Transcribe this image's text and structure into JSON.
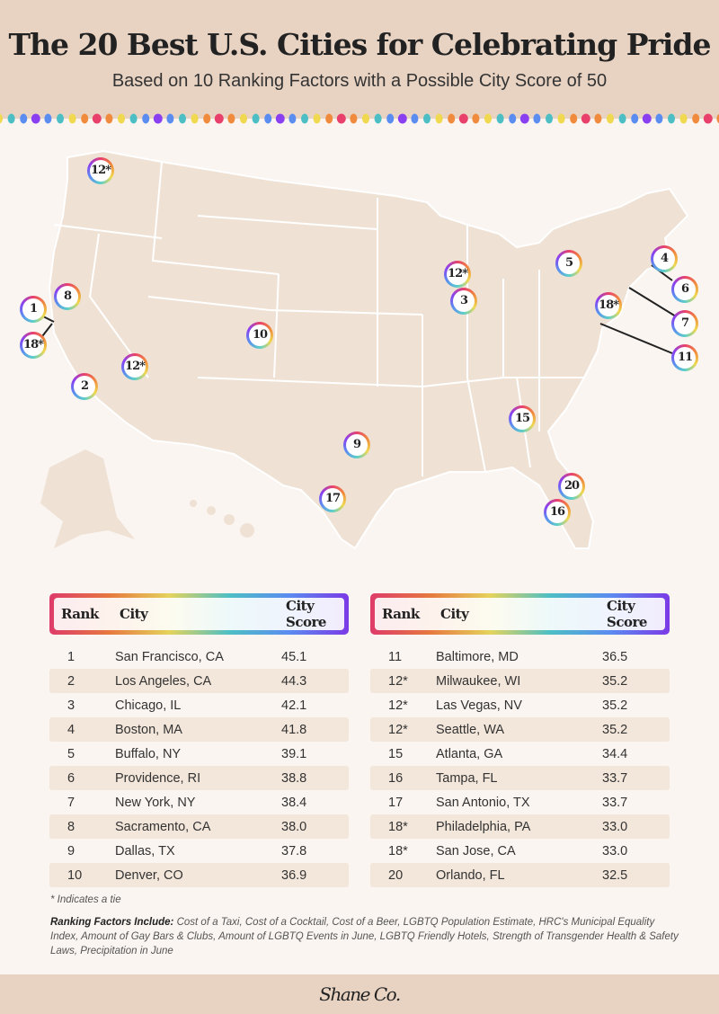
{
  "header": {
    "title": "The 20 Best U.S. Cities for Celebrating Pride",
    "subtitle": "Based on 10 Ranking Factors with a Possible City Score of 50"
  },
  "dot_colors": [
    "#f0d84f",
    "#4dbfc4",
    "#5b8cf0",
    "#8a3ff0",
    "#5b8cf0",
    "#4dbfc4",
    "#f0d84f",
    "#f08a3c",
    "#e8406b",
    "#f08a3c"
  ],
  "map_markers": [
    "12*",
    "8",
    "1",
    "18*",
    "2",
    "12*",
    "10",
    "12*",
    "3",
    "5",
    "4",
    "6",
    "18*",
    "7",
    "11",
    "15",
    "9",
    "17",
    "20",
    "16"
  ],
  "table": {
    "headers": {
      "rank": "Rank",
      "city": "City",
      "score": "City Score"
    },
    "left": [
      [
        "1",
        "San Francisco, CA",
        "45.1"
      ],
      [
        "2",
        "Los Angeles, CA",
        "44.3"
      ],
      [
        "3",
        "Chicago, IL",
        "42.1"
      ],
      [
        "4",
        "Boston, MA",
        "41.8"
      ],
      [
        "5",
        "Buffalo, NY",
        "39.1"
      ],
      [
        "6",
        "Providence, RI",
        "38.8"
      ],
      [
        "7",
        "New York, NY",
        "38.4"
      ],
      [
        "8",
        "Sacramento, CA",
        "38.0"
      ],
      [
        "9",
        "Dallas, TX",
        "37.8"
      ],
      [
        "10",
        "Denver, CO",
        "36.9"
      ]
    ],
    "right": [
      [
        "11",
        "Baltimore, MD",
        "36.5"
      ],
      [
        "12*",
        "Milwaukee, WI",
        "35.2"
      ],
      [
        "12*",
        "Las Vegas, NV",
        "35.2"
      ],
      [
        "12*",
        "Seattle, WA",
        "35.2"
      ],
      [
        "15",
        "Atlanta, GA",
        "34.4"
      ],
      [
        "16",
        "Tampa, FL",
        "33.7"
      ],
      [
        "17",
        "San Antonio, TX",
        "33.7"
      ],
      [
        "18*",
        "Philadelphia, PA",
        "33.0"
      ],
      [
        "18*",
        "San Jose, CA",
        "33.0"
      ],
      [
        "20",
        "Orlando, FL",
        "32.5"
      ]
    ]
  },
  "notes": {
    "tie": "* Indicates a tie",
    "factors_label": "Ranking Factors Include:",
    "factors": "Cost of a Taxi, Cost of a Cocktail, Cost of a Beer, LGBTQ Population Estimate, HRC's Municipal Equality Index, Amount of Gay Bars & Clubs, Amount of LGBTQ Events in June, LGBTQ Friendly Hotels, Strength of Transgender Health & Safety Laws, Precipitation in June"
  },
  "footer": {
    "logo": "Shane Co."
  }
}
